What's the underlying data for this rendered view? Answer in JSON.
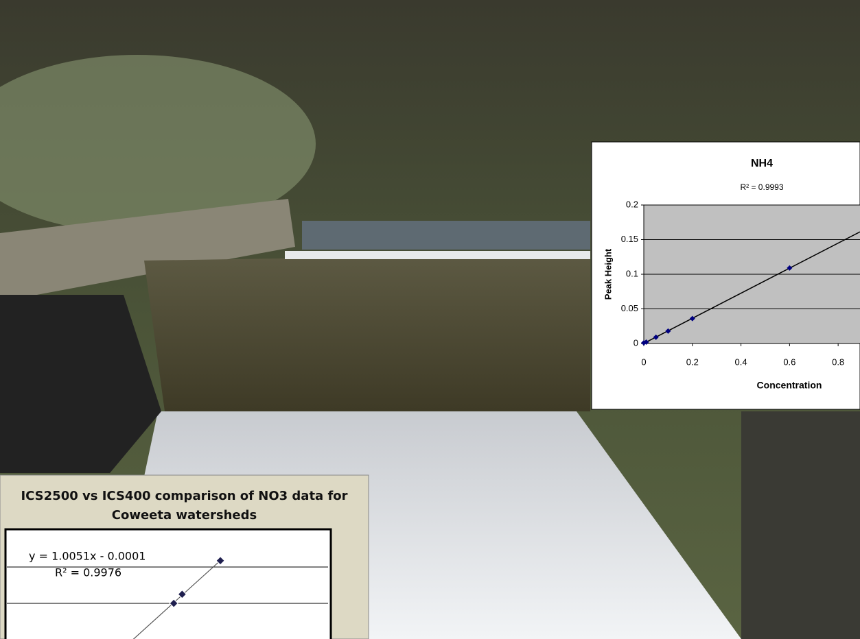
{
  "chart_data": [
    {
      "type": "scatter",
      "title": "NH4",
      "subtitle": "R² = 0.9993",
      "x_label": "Concentration",
      "y_label": "Peak Height",
      "x": [
        0,
        0.01,
        0.05,
        0.1,
        0.2,
        0.6
      ],
      "values": [
        0.001,
        0.002,
        0.009,
        0.018,
        0.036,
        0.109
      ],
      "color": "#000080",
      "trendline": true,
      "xlim": [
        0,
        0.89
      ],
      "ylim": [
        0,
        0.2
      ],
      "xticks": [
        0,
        0.2,
        0.4,
        0.6,
        0.8
      ],
      "yticks": [
        0,
        0.05,
        0.1,
        0.15,
        0.2
      ],
      "grid": true
    },
    {
      "type": "scatter",
      "title": "ICS2500 vs ICS400 comparison of NO3 data for Coweeta watersheds",
      "annotations": [
        "y = 1.0051x - 0.0001",
        "R² = 0.9976"
      ],
      "x": [
        1.79,
        1.88,
        2.29
      ],
      "values": [
        1.8,
        1.9,
        2.27
      ],
      "color": "#1f1f4f",
      "trendline": true,
      "xlim": [
        0,
        3.46
      ],
      "ylim": [
        1.4,
        2.6
      ],
      "ygrid": [
        1.8,
        2.2
      ]
    }
  ]
}
